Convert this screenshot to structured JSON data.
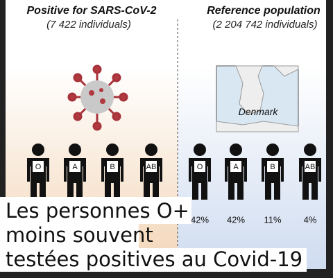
{
  "left": {
    "title": "Positive for SARS-CoV-2",
    "subtitle": "(7 422 individuals)",
    "groups": [
      "O",
      "A",
      "B",
      "AB"
    ]
  },
  "right": {
    "title": "Reference population",
    "subtitle": "(2 204 742 individuals)",
    "map_label": "Denmark",
    "groups": [
      "O",
      "A",
      "B",
      "AB"
    ],
    "percentages": [
      "42%",
      "42%",
      "11%",
      "4%"
    ]
  },
  "caption": {
    "lines": [
      "Les personnes O+",
      "moins souvent",
      "testées positives au Covid-19"
    ]
  }
}
